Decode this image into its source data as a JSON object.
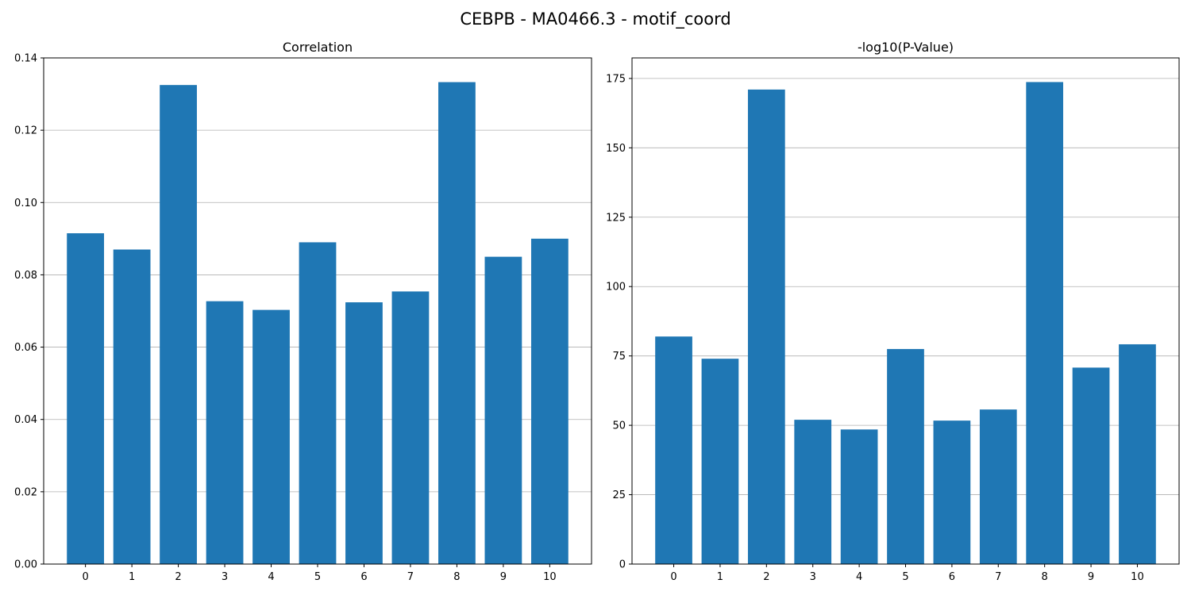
{
  "figure": {
    "suptitle": "CEBPB - MA0466.3 - motif_coord",
    "bar_color": "#1f77b4",
    "grid_color": "#b0b0b0"
  },
  "chart_data": [
    {
      "type": "bar",
      "title": "Correlation",
      "xlabel": "",
      "ylabel": "",
      "categories": [
        "0",
        "1",
        "2",
        "3",
        "4",
        "5",
        "6",
        "7",
        "8",
        "9",
        "10"
      ],
      "values": [
        0.0915,
        0.087,
        0.1325,
        0.0727,
        0.0703,
        0.089,
        0.0724,
        0.0754,
        0.1333,
        0.085,
        0.09
      ],
      "ylim": [
        0,
        0.14
      ],
      "yticks": [
        0.0,
        0.02,
        0.04,
        0.06,
        0.08,
        0.1,
        0.12,
        0.14
      ],
      "ytick_labels": [
        "0.00",
        "0.02",
        "0.04",
        "0.06",
        "0.08",
        "0.10",
        "0.12",
        "0.14"
      ],
      "grid": "y"
    },
    {
      "type": "bar",
      "title": "-log10(P-Value)",
      "xlabel": "",
      "ylabel": "",
      "categories": [
        "0",
        "1",
        "2",
        "3",
        "4",
        "5",
        "6",
        "7",
        "8",
        "9",
        "10"
      ],
      "values": [
        82,
        74,
        171,
        52,
        48.5,
        77.5,
        51.7,
        55.7,
        173.7,
        70.8,
        79.2
      ],
      "ylim": [
        0,
        182.4
      ],
      "yticks": [
        0,
        25,
        50,
        75,
        100,
        125,
        150,
        175
      ],
      "ytick_labels": [
        "0",
        "25",
        "50",
        "75",
        "100",
        "125",
        "150",
        "175"
      ],
      "grid": "y"
    }
  ]
}
